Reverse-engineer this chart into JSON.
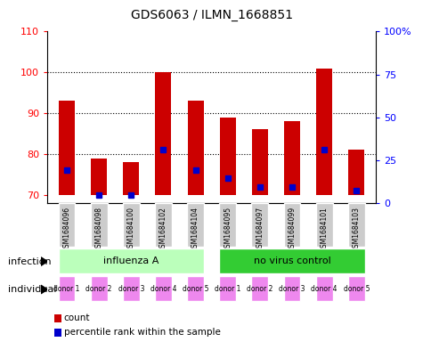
{
  "title": "GDS6063 / ILMN_1668851",
  "samples": [
    "GSM1684096",
    "GSM1684098",
    "GSM1684100",
    "GSM1684102",
    "GSM1684104",
    "GSM1684095",
    "GSM1684097",
    "GSM1684099",
    "GSM1684101",
    "GSM1684103"
  ],
  "bar_tops": [
    93,
    79,
    78,
    100,
    93,
    89,
    86,
    88,
    101,
    81
  ],
  "bar_bottoms": [
    70,
    70,
    70,
    70,
    70,
    70,
    70,
    70,
    70,
    70
  ],
  "percentile_values": [
    76,
    70,
    70,
    81,
    76,
    74,
    72,
    72,
    81,
    71
  ],
  "ylim_left": [
    68,
    110
  ],
  "yticks_left": [
    70,
    80,
    90,
    100,
    110
  ],
  "ylim_right": [
    0,
    100
  ],
  "yticks_right": [
    0,
    25,
    50,
    75,
    100
  ],
  "yticklabels_right": [
    "0",
    "25",
    "50",
    "75",
    "100%"
  ],
  "bar_color": "#cc0000",
  "percentile_color": "#0000cc",
  "infection_groups": [
    {
      "label": "influenza A",
      "start": 0,
      "end": 5,
      "color": "#bbffbb"
    },
    {
      "label": "no virus control",
      "start": 5,
      "end": 10,
      "color": "#33cc33"
    }
  ],
  "individual_labels": [
    "donor 1",
    "donor 2",
    "donor 3",
    "donor 4",
    "donor 5",
    "donor 1",
    "donor 2",
    "donor 3",
    "donor 4",
    "donor 5"
  ],
  "individual_color": "#ee88ee",
  "sample_bg_color": "#cccccc",
  "legend_count_color": "#cc0000",
  "legend_percentile_color": "#0000cc",
  "bar_width": 0.5
}
